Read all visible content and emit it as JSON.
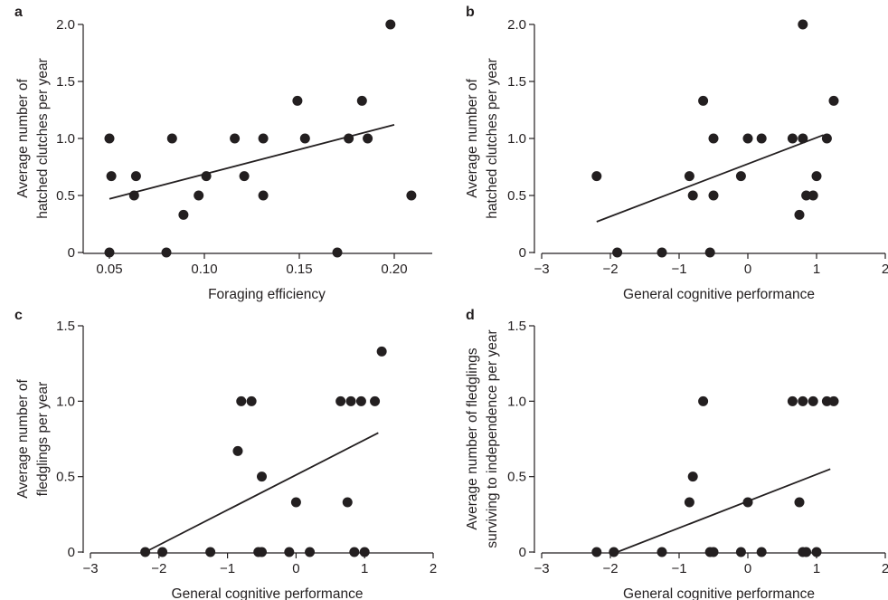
{
  "chart_data": [
    {
      "panel": "a",
      "type": "scatter",
      "xlabel": "Foraging efficiency",
      "ylabel": [
        "Average number of",
        "hatched clutches per year"
      ],
      "xlim": [
        0.04,
        0.22
      ],
      "ylim": [
        0,
        2
      ],
      "xticks": [
        0.05,
        0.1,
        0.15,
        0.2
      ],
      "xtick_labels": [
        "0.05",
        "0.10",
        "0.15",
        "0.20"
      ],
      "yticks": [
        0,
        0.5,
        1,
        1.5,
        2
      ],
      "ytick_labels": [
        "0",
        "0.5",
        "1.0",
        "1.5",
        "2.0"
      ],
      "points": [
        [
          0.05,
          1.0
        ],
        [
          0.051,
          0.67
        ],
        [
          0.05,
          0.0
        ],
        [
          0.063,
          0.5
        ],
        [
          0.064,
          0.67
        ],
        [
          0.08,
          0.0
        ],
        [
          0.083,
          1.0
        ],
        [
          0.089,
          0.33
        ],
        [
          0.097,
          0.5
        ],
        [
          0.101,
          0.67
        ],
        [
          0.116,
          1.0
        ],
        [
          0.121,
          0.67
        ],
        [
          0.131,
          1.0
        ],
        [
          0.131,
          0.5
        ],
        [
          0.149,
          1.33
        ],
        [
          0.153,
          1.0
        ],
        [
          0.17,
          0.0
        ],
        [
          0.176,
          1.0
        ],
        [
          0.183,
          1.33
        ],
        [
          0.186,
          1.0
        ],
        [
          0.198,
          2.0
        ],
        [
          0.209,
          0.5
        ]
      ],
      "fit_line": [
        [
          0.05,
          0.47
        ],
        [
          0.2,
          1.12
        ]
      ],
      "grid": false,
      "legend": "none"
    },
    {
      "panel": "b",
      "type": "scatter",
      "xlabel": "General cognitive performance",
      "ylabel": [
        "Average number of",
        "hatched clutches per year"
      ],
      "xlim": [
        -3,
        2
      ],
      "ylim": [
        0,
        2
      ],
      "xticks": [
        -3,
        -2,
        -1,
        0,
        1,
        2
      ],
      "xtick_labels": [
        "−3",
        "−2",
        "−1",
        "0",
        "1",
        "2"
      ],
      "yticks": [
        0,
        0.5,
        1,
        1.5,
        2
      ],
      "ytick_labels": [
        "0",
        "0.5",
        "1.0",
        "1.5",
        "2.0"
      ],
      "points": [
        [
          -2.2,
          0.67
        ],
        [
          -1.9,
          0.0
        ],
        [
          -1.25,
          0.0
        ],
        [
          -0.85,
          0.67
        ],
        [
          -0.8,
          0.5
        ],
        [
          -0.65,
          1.33
        ],
        [
          -0.55,
          0.0
        ],
        [
          -0.5,
          1.0
        ],
        [
          -0.5,
          0.5
        ],
        [
          -0.1,
          0.67
        ],
        [
          0.0,
          1.0
        ],
        [
          0.2,
          1.0
        ],
        [
          0.65,
          1.0
        ],
        [
          0.75,
          0.33
        ],
        [
          0.8,
          1.0
        ],
        [
          0.8,
          2.0
        ],
        [
          0.85,
          0.5
        ],
        [
          0.95,
          0.5
        ],
        [
          1.0,
          0.67
        ],
        [
          1.15,
          1.0
        ],
        [
          1.25,
          1.33
        ]
      ],
      "fit_line": [
        [
          -2.2,
          0.27
        ],
        [
          1.1,
          1.03
        ]
      ],
      "grid": false,
      "legend": "none"
    },
    {
      "panel": "c",
      "type": "scatter",
      "xlabel": "General cognitive performance",
      "ylabel": [
        "Average number of",
        "fledglings per year"
      ],
      "xlim": [
        -3,
        2
      ],
      "ylim": [
        0,
        1.5
      ],
      "xticks": [
        -3,
        -2,
        -1,
        0,
        1,
        2
      ],
      "xtick_labels": [
        "−3",
        "−2",
        "−1",
        "0",
        "1",
        "2"
      ],
      "yticks": [
        0,
        0.5,
        1,
        1.5
      ],
      "ytick_labels": [
        "0",
        "0.5",
        "1.0",
        "1.5"
      ],
      "points": [
        [
          -2.2,
          0.0
        ],
        [
          -1.95,
          0.0
        ],
        [
          -1.25,
          0.0
        ],
        [
          -0.85,
          0.67
        ],
        [
          -0.8,
          1.0
        ],
        [
          -0.65,
          1.0
        ],
        [
          -0.55,
          0.0
        ],
        [
          -0.5,
          0.0
        ],
        [
          -0.5,
          0.5
        ],
        [
          -0.1,
          0.0
        ],
        [
          0.0,
          0.33
        ],
        [
          0.2,
          0.0
        ],
        [
          0.65,
          1.0
        ],
        [
          0.75,
          0.33
        ],
        [
          0.8,
          1.0
        ],
        [
          0.85,
          0.0
        ],
        [
          0.95,
          1.0
        ],
        [
          1.0,
          0.0
        ],
        [
          1.15,
          1.0
        ],
        [
          1.25,
          1.33
        ]
      ],
      "fit_line": [
        [
          -2.2,
          0.0
        ],
        [
          1.2,
          0.79
        ]
      ],
      "grid": false,
      "legend": "none"
    },
    {
      "panel": "d",
      "type": "scatter",
      "xlabel": "General cognitive performance",
      "ylabel": [
        "Average number of fledglings",
        "surviving to independence per year"
      ],
      "xlim": [
        -3,
        2
      ],
      "ylim": [
        0,
        1.5
      ],
      "xticks": [
        -3,
        -2,
        -1,
        0,
        1,
        2
      ],
      "xtick_labels": [
        "−3",
        "−2",
        "−1",
        "0",
        "1",
        "2"
      ],
      "yticks": [
        0,
        0.5,
        1,
        1.5
      ],
      "ytick_labels": [
        "0",
        "0.5",
        "1.0",
        "1.5"
      ],
      "points": [
        [
          -2.2,
          0.0
        ],
        [
          -1.95,
          0.0
        ],
        [
          -1.25,
          0.0
        ],
        [
          -0.85,
          0.33
        ],
        [
          -0.8,
          0.5
        ],
        [
          -0.65,
          1.0
        ],
        [
          -0.55,
          0.0
        ],
        [
          -0.5,
          0.0
        ],
        [
          -0.1,
          0.0
        ],
        [
          0.0,
          0.33
        ],
        [
          0.2,
          0.0
        ],
        [
          0.65,
          1.0
        ],
        [
          0.75,
          0.33
        ],
        [
          0.8,
          1.0
        ],
        [
          0.8,
          0.0
        ],
        [
          0.85,
          0.0
        ],
        [
          0.95,
          1.0
        ],
        [
          1.0,
          0.0
        ],
        [
          1.15,
          1.0
        ],
        [
          1.25,
          1.0
        ]
      ],
      "fit_line": [
        [
          -1.9,
          0.0
        ],
        [
          1.2,
          0.55
        ]
      ],
      "grid": false,
      "legend": "none"
    }
  ]
}
